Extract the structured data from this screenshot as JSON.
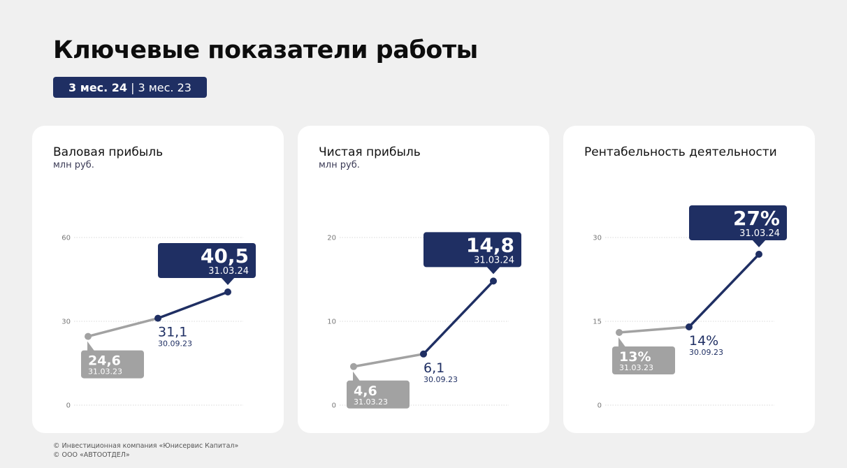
{
  "header": {
    "title": "Ключевые показатели работы",
    "period_current": "3 мес. 24",
    "period_separator": "|",
    "period_previous": "3 мес. 23"
  },
  "colors": {
    "navy": "#1f2f63",
    "gray": "#a2a2a2",
    "background": "#f0f0f0",
    "card": "#ffffff"
  },
  "chart_data": [
    {
      "type": "line",
      "title": "Валовая прибыль",
      "ylabel": "млн руб.",
      "ylim": [
        0,
        60
      ],
      "yticks": [
        "0",
        "30",
        "60"
      ],
      "grid": true,
      "points": [
        {
          "date": "31.03.23",
          "value": 24.6,
          "label": "24,6",
          "style": "gray"
        },
        {
          "date": "30.09.23",
          "value": 31.1,
          "label": "31,1",
          "style": "plain"
        },
        {
          "date": "31.03.24",
          "value": 40.5,
          "label": "40,5",
          "style": "navy"
        }
      ]
    },
    {
      "type": "line",
      "title": "Чистая прибыль",
      "ylabel": "млн руб.",
      "ylim": [
        0,
        20
      ],
      "yticks": [
        "0",
        "10",
        "20"
      ],
      "grid": true,
      "points": [
        {
          "date": "31.03.23",
          "value": 4.6,
          "label": "4,6",
          "style": "gray"
        },
        {
          "date": "30.09.23",
          "value": 6.1,
          "label": "6,1",
          "style": "plain"
        },
        {
          "date": "31.03.24",
          "value": 14.8,
          "label": "14,8",
          "style": "navy"
        }
      ]
    },
    {
      "type": "line",
      "title": "Рентабельность деятельности",
      "ylabel": "",
      "ylim": [
        0,
        30
      ],
      "yticks": [
        "0",
        "15",
        "30"
      ],
      "grid": true,
      "points": [
        {
          "date": "31.03.23",
          "value": 13,
          "label": "13%",
          "style": "gray"
        },
        {
          "date": "30.09.23",
          "value": 14,
          "label": "14%",
          "style": "plain"
        },
        {
          "date": "31.03.24",
          "value": 27,
          "label": "27%",
          "style": "navy"
        }
      ]
    }
  ],
  "footer": {
    "line1": "© Инвестиционная компания «Юнисервис Капитал»",
    "line2": "© ООО «АВТООТДЕЛ»"
  }
}
